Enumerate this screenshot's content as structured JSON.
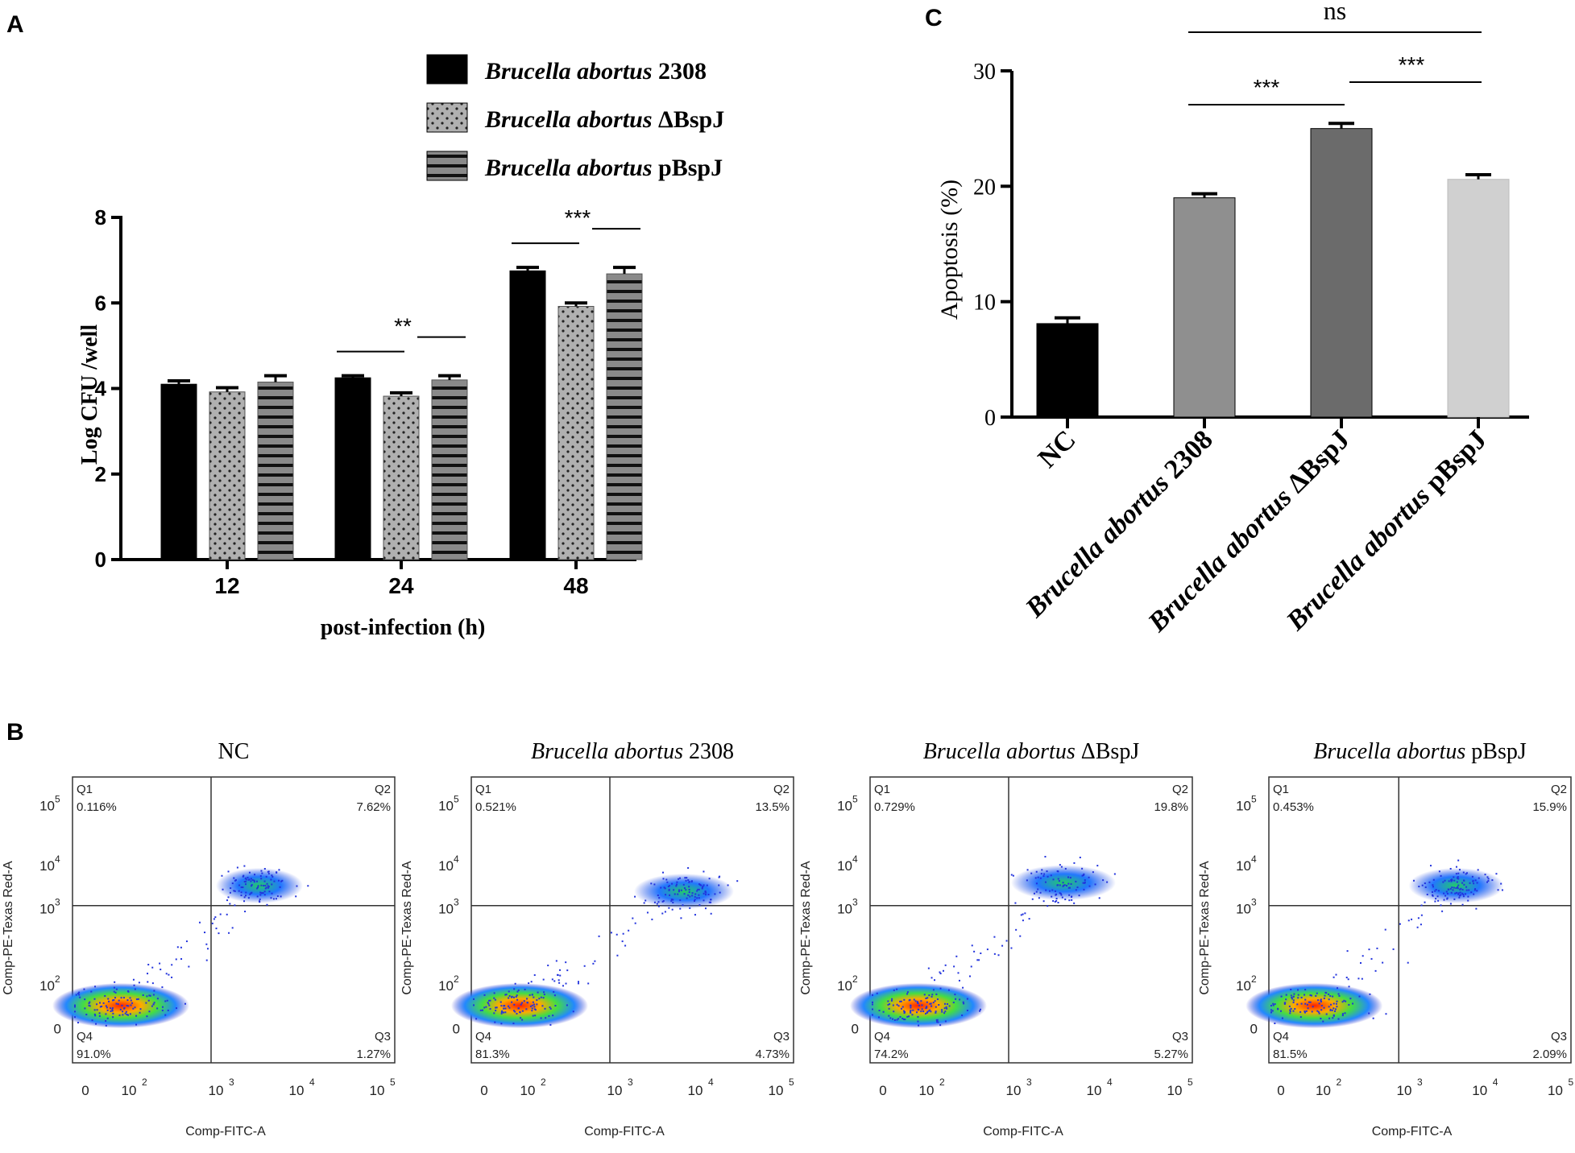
{
  "panels": {
    "a": "A",
    "b": "B",
    "c": "C"
  },
  "colors": {
    "black": "#000000",
    "gray_dotted": "#a9a9a9",
    "gray_striped": "#8a8a8a",
    "nc": "#000000",
    "b2308": "#8f8f8f",
    "dBspJ": "#6b6b6b",
    "pBspJ": "#d0d0d0"
  },
  "chart_data": [
    {
      "id": "A",
      "type": "bar",
      "xlabel": "post-infection (h)",
      "ylabel": "Log CFU /well",
      "ylim": [
        0,
        8
      ],
      "yticks": [
        "0",
        "2",
        "4",
        "6",
        "8"
      ],
      "categories": [
        "12",
        "24",
        "48"
      ],
      "legend": {
        "prefix": "Brucella abortus",
        "position": "top-right"
      },
      "series": [
        {
          "name": "Brucella abortus 2308",
          "suffix": "2308",
          "values": [
            4.1,
            4.25,
            6.75
          ],
          "errors": [
            0.08,
            0.05,
            0.08
          ],
          "pattern": "solid"
        },
        {
          "name": "Brucella abortus ΔBspJ",
          "suffix": "ΔBspJ",
          "values": [
            3.92,
            3.82,
            5.92
          ],
          "errors": [
            0.1,
            0.08,
            0.08
          ],
          "pattern": "dotted"
        },
        {
          "name": "Brucella abortus pBspJ",
          "suffix": "pBspJ",
          "values": [
            4.15,
            4.2,
            6.68
          ],
          "errors": [
            0.15,
            0.1,
            0.15
          ],
          "pattern": "striped"
        }
      ],
      "significance": [
        {
          "category": "24",
          "label": "**"
        },
        {
          "category": "48",
          "label": "***"
        }
      ]
    },
    {
      "id": "C",
      "type": "bar",
      "xlabel": "",
      "ylabel": "Apoptosis (%)",
      "ylim": [
        0,
        30
      ],
      "yticks": [
        "0",
        "10",
        "20",
        "30"
      ],
      "categories": [
        {
          "label": "NC",
          "prefix": "",
          "suffix": "NC"
        },
        {
          "label": "Brucella abortus 2308",
          "prefix": "Brucella abortus",
          "suffix": "2308"
        },
        {
          "label": "Brucella abortus ΔBspJ",
          "prefix": "Brucella abortus",
          "suffix": "ΔBspJ"
        },
        {
          "label": "Brucella abortus pBspJ",
          "prefix": "Brucella abortus",
          "suffix": "pBspJ"
        }
      ],
      "values": [
        8.1,
        19.0,
        25.0,
        20.6
      ],
      "errors": [
        0.5,
        0.35,
        0.45,
        0.4
      ],
      "significance": [
        {
          "from": 1,
          "to": 2,
          "label": "***"
        },
        {
          "from": 2,
          "to": 3,
          "label": "***"
        },
        {
          "from": 1,
          "to": 3,
          "label": "ns"
        }
      ]
    },
    {
      "id": "B",
      "type": "scatter",
      "xlabel": "Comp-FITC-A",
      "ylabel": "Comp-PE-Texas Red-A",
      "ticks": [
        "0",
        "10",
        "2",
        "10",
        "3",
        "10",
        "4",
        "10",
        "5"
      ],
      "plots": [
        {
          "title_prefix": "",
          "title_suffix": "NC",
          "q1": "0.116%",
          "q2": "7.62%",
          "q3": "1.27%",
          "q4": "91.0%"
        },
        {
          "title_prefix": "Brucella abortus",
          "title_suffix": "2308",
          "q1": "0.521%",
          "q2": "13.5%",
          "q3": "4.73%",
          "q4": "81.3%"
        },
        {
          "title_prefix": "Brucella abortus",
          "title_suffix": "ΔBspJ",
          "q1": "0.729%",
          "q2": "19.8%",
          "q3": "5.27%",
          "q4": "74.2%"
        },
        {
          "title_prefix": "Brucella abortus",
          "title_suffix": "pBspJ",
          "q1": "0.453%",
          "q2": "15.9%",
          "q3": "2.09%",
          "q4": "81.5%"
        }
      ],
      "quadrant_labels": [
        "Q1",
        "Q2",
        "Q3",
        "Q4"
      ]
    }
  ]
}
